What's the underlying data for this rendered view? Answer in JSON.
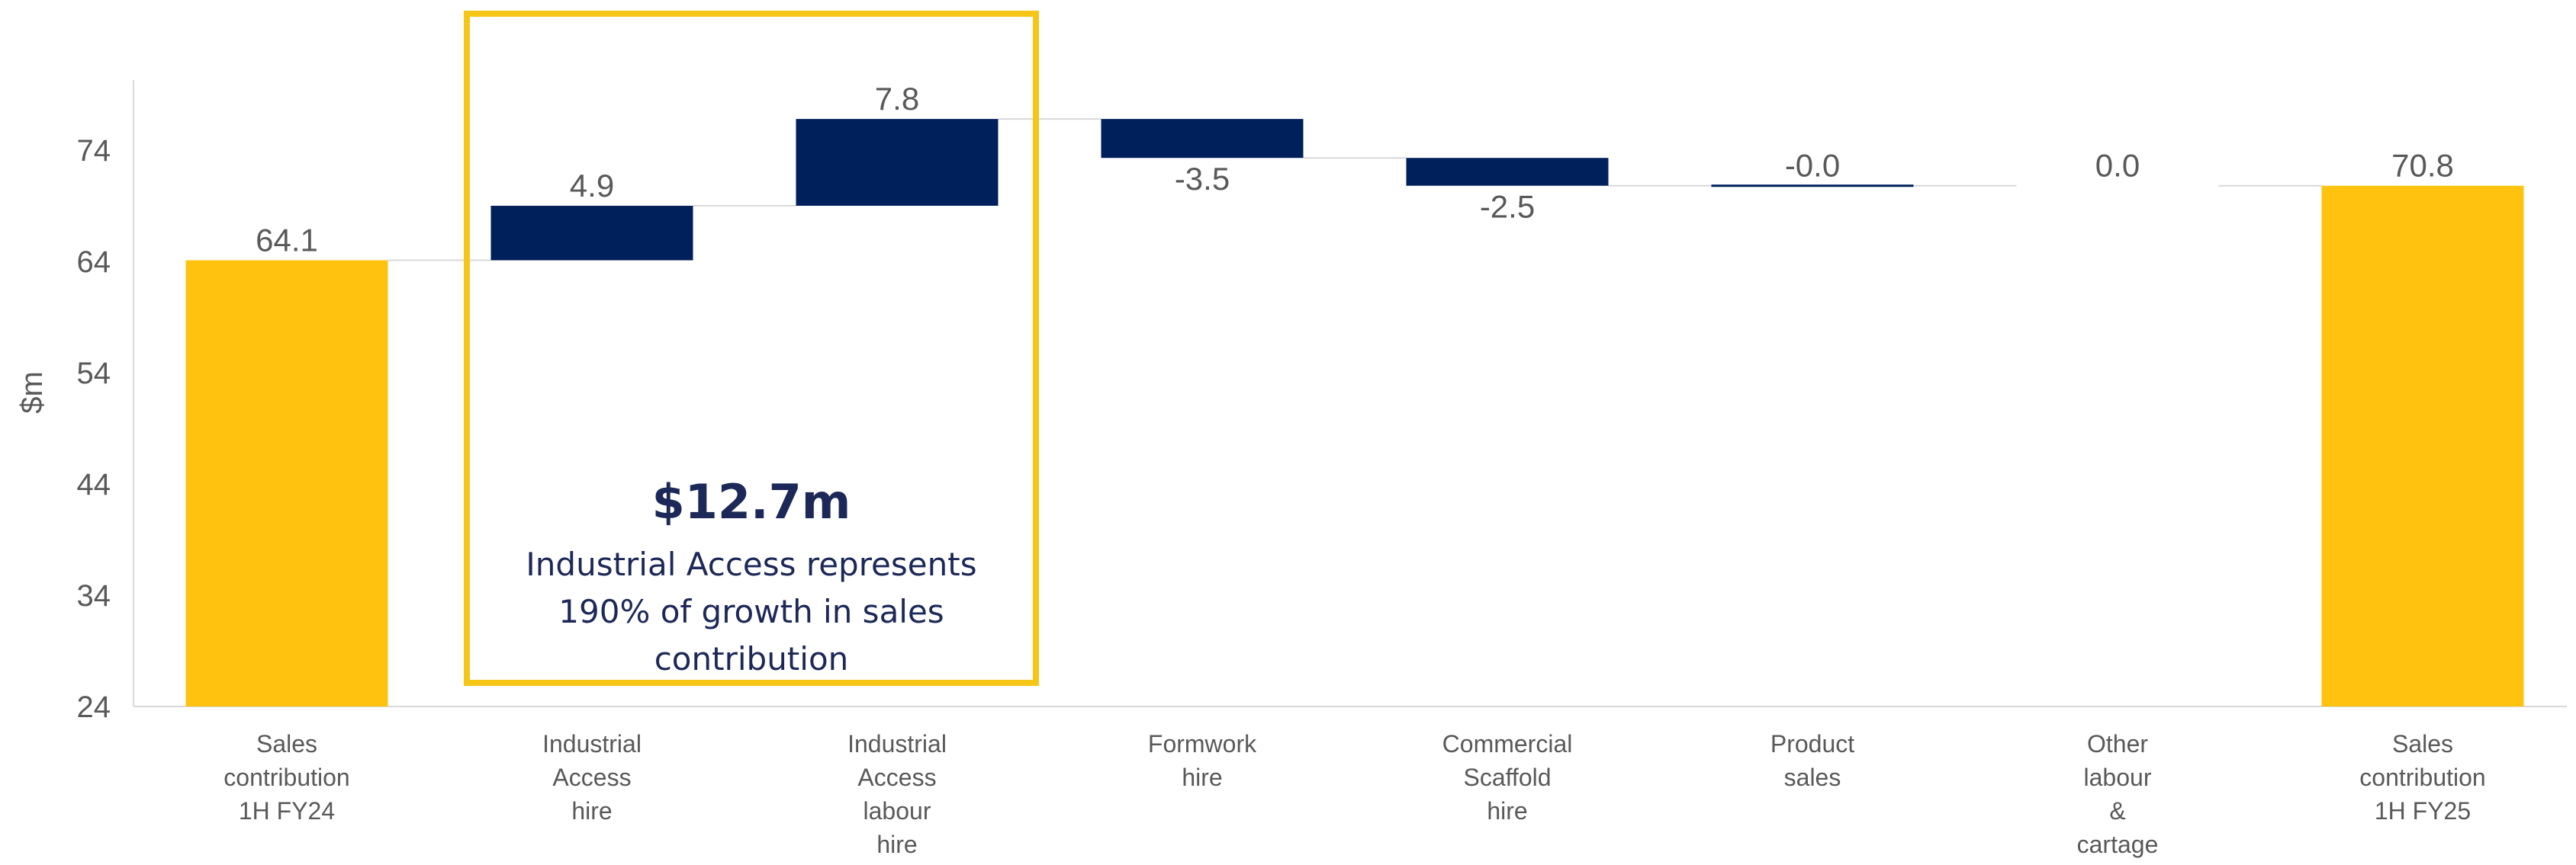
{
  "chart_data": {
    "type": "waterfall",
    "ylabel": "$m",
    "ylim": [
      24,
      84
    ],
    "yticks": [
      24,
      34,
      44,
      54,
      64,
      74
    ],
    "categories": [
      [
        "Sales",
        "contribution",
        "1H FY24"
      ],
      [
        "Industrial",
        "Access",
        "hire"
      ],
      [
        "Industrial",
        "Access",
        "labour",
        "hire"
      ],
      [
        "Formwork",
        "hire"
      ],
      [
        "Commercial",
        "Scaffold",
        "hire"
      ],
      [
        "Product",
        "sales"
      ],
      [
        "Other",
        "labour",
        "&",
        "cartage"
      ],
      [
        "Sales",
        "contribution",
        "1H FY25"
      ]
    ],
    "values": [
      64.1,
      4.9,
      7.8,
      -3.5,
      -2.5,
      -0.0,
      0.0,
      70.8
    ],
    "value_labels": [
      "64.1",
      "4.9",
      "7.8",
      "-3.5",
      "-2.5",
      "-0.0",
      "0.0",
      "70.8"
    ],
    "bar_kinds": [
      "total",
      "delta",
      "delta",
      "delta",
      "delta",
      "delta",
      "delta",
      "total"
    ],
    "grid": false,
    "legend": "none"
  },
  "callout": {
    "headline": "$12.7m",
    "body": "Industrial Access represents 190% of growth in sales contribution"
  },
  "colors": {
    "total": "#FFC20E",
    "delta": "#00205B",
    "axis": "#D9D9D9",
    "text": "#595959",
    "callout_border": "#F5C518",
    "callout_text": "#1C2858"
  }
}
